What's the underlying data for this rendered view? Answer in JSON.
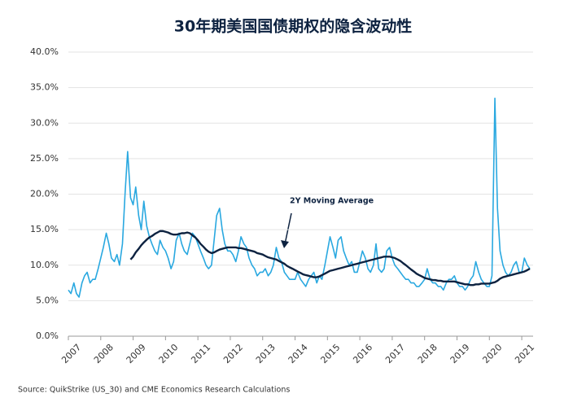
{
  "chart_data": {
    "type": "line",
    "title": "30年期美国国债期权的隐含波动性",
    "source": "Source: QuikStrike (US_30) and CME Economics Research Calculations",
    "annotation": "2Y Moving Average",
    "x": [
      2007.0,
      2007.08,
      2007.17,
      2007.25,
      2007.33,
      2007.42,
      2007.5,
      2007.58,
      2007.67,
      2007.75,
      2007.83,
      2007.92,
      2008.0,
      2008.08,
      2008.17,
      2008.25,
      2008.33,
      2008.42,
      2008.5,
      2008.58,
      2008.67,
      2008.75,
      2008.83,
      2008.92,
      2009.0,
      2009.08,
      2009.17,
      2009.25,
      2009.33,
      2009.42,
      2009.5,
      2009.58,
      2009.67,
      2009.75,
      2009.83,
      2009.92,
      2010.0,
      2010.08,
      2010.17,
      2010.25,
      2010.33,
      2010.42,
      2010.5,
      2010.58,
      2010.67,
      2010.75,
      2010.83,
      2010.92,
      2011.0,
      2011.08,
      2011.17,
      2011.25,
      2011.33,
      2011.42,
      2011.5,
      2011.58,
      2011.67,
      2011.75,
      2011.83,
      2011.92,
      2012.0,
      2012.08,
      2012.17,
      2012.25,
      2012.33,
      2012.42,
      2012.5,
      2012.58,
      2012.67,
      2012.75,
      2012.83,
      2012.92,
      2013.0,
      2013.08,
      2013.17,
      2013.25,
      2013.33,
      2013.42,
      2013.5,
      2013.58,
      2013.67,
      2013.75,
      2013.83,
      2013.92,
      2014.0,
      2014.08,
      2014.17,
      2014.25,
      2014.33,
      2014.42,
      2014.5,
      2014.58,
      2014.67,
      2014.75,
      2014.83,
      2014.92,
      2015.0,
      2015.08,
      2015.17,
      2015.25,
      2015.33,
      2015.42,
      2015.5,
      2015.58,
      2015.67,
      2015.75,
      2015.83,
      2015.92,
      2016.0,
      2016.08,
      2016.17,
      2016.25,
      2016.33,
      2016.42,
      2016.5,
      2016.58,
      2016.67,
      2016.75,
      2016.83,
      2016.92,
      2017.0,
      2017.08,
      2017.17,
      2017.25,
      2017.33,
      2017.42,
      2017.5,
      2017.58,
      2017.67,
      2017.75,
      2017.83,
      2017.92,
      2018.0,
      2018.08,
      2018.17,
      2018.25,
      2018.33,
      2018.42,
      2018.5,
      2018.58,
      2018.67,
      2018.75,
      2018.83,
      2018.92,
      2019.0,
      2019.08,
      2019.17,
      2019.25,
      2019.33,
      2019.42,
      2019.5,
      2019.58,
      2019.67,
      2019.75,
      2019.83,
      2019.92,
      2020.0,
      2020.08,
      2020.17,
      2020.25,
      2020.33,
      2020.42,
      2020.5,
      2020.58,
      2020.67,
      2020.75,
      2020.83,
      2020.92,
      2021.0,
      2021.08,
      2021.17,
      2021.25
    ],
    "series": [
      {
        "color": "#29a8e0",
        "width": 1.6,
        "values": [
          6.5,
          6.0,
          7.5,
          6.0,
          5.5,
          7.5,
          8.5,
          9.0,
          7.5,
          8.0,
          8.0,
          9.5,
          11.0,
          12.5,
          14.5,
          13.0,
          11.0,
          10.5,
          11.5,
          10.0,
          13.0,
          20.0,
          26.0,
          19.5,
          18.5,
          21.0,
          17.0,
          15.0,
          19.0,
          15.5,
          14.0,
          13.0,
          12.0,
          11.5,
          13.5,
          12.5,
          12.0,
          11.0,
          9.5,
          10.5,
          13.5,
          14.5,
          13.0,
          12.0,
          11.5,
          13.0,
          14.5,
          14.0,
          13.0,
          12.0,
          11.0,
          10.0,
          9.5,
          10.0,
          13.5,
          17.0,
          18.0,
          15.0,
          13.0,
          12.0,
          12.0,
          11.5,
          10.5,
          12.0,
          14.0,
          13.0,
          12.5,
          11.0,
          10.0,
          9.5,
          8.5,
          9.0,
          9.0,
          9.5,
          8.5,
          9.0,
          10.0,
          12.5,
          11.0,
          10.5,
          9.0,
          8.5,
          8.0,
          8.0,
          8.0,
          9.0,
          8.0,
          7.5,
          7.0,
          8.0,
          8.5,
          9.0,
          7.5,
          8.5,
          8.0,
          10.0,
          12.0,
          14.0,
          12.5,
          11.0,
          13.5,
          14.0,
          12.0,
          11.0,
          10.0,
          10.5,
          9.0,
          9.0,
          10.5,
          12.0,
          11.0,
          9.5,
          9.0,
          10.0,
          13.0,
          9.5,
          9.0,
          9.5,
          12.0,
          12.5,
          11.0,
          10.0,
          9.5,
          9.0,
          8.5,
          8.0,
          8.0,
          7.5,
          7.5,
          7.0,
          7.0,
          7.5,
          8.0,
          9.5,
          8.0,
          7.5,
          7.5,
          7.0,
          7.0,
          6.5,
          7.5,
          8.0,
          8.0,
          8.5,
          7.5,
          7.0,
          7.0,
          6.5,
          7.0,
          8.0,
          8.5,
          10.5,
          9.0,
          8.0,
          7.5,
          7.0,
          7.0,
          8.5,
          33.5,
          18.0,
          12.0,
          10.0,
          9.0,
          8.5,
          9.0,
          10.0,
          10.5,
          9.0,
          9.0,
          11.0,
          10.0,
          9.5
        ]
      },
      {
        "color": "#0d2240",
        "width": 2.4,
        "values": [
          null,
          null,
          null,
          null,
          null,
          null,
          null,
          null,
          null,
          null,
          null,
          null,
          null,
          null,
          null,
          null,
          null,
          null,
          null,
          null,
          null,
          null,
          null,
          10.8,
          11.2,
          11.8,
          12.3,
          12.8,
          13.2,
          13.6,
          13.9,
          14.1,
          14.4,
          14.6,
          14.8,
          14.8,
          14.7,
          14.6,
          14.4,
          14.3,
          14.3,
          14.4,
          14.5,
          14.5,
          14.6,
          14.5,
          14.2,
          13.9,
          13.5,
          13.0,
          12.6,
          12.2,
          11.9,
          11.7,
          11.8,
          12.0,
          12.2,
          12.3,
          12.4,
          12.5,
          12.5,
          12.5,
          12.5,
          12.4,
          12.4,
          12.3,
          12.2,
          12.1,
          12.0,
          11.9,
          11.7,
          11.6,
          11.5,
          11.3,
          11.1,
          11.0,
          10.9,
          10.8,
          10.6,
          10.4,
          10.2,
          9.9,
          9.7,
          9.5,
          9.3,
          9.1,
          8.9,
          8.7,
          8.6,
          8.5,
          8.4,
          8.3,
          8.3,
          8.4,
          8.6,
          8.8,
          9.0,
          9.2,
          9.3,
          9.4,
          9.5,
          9.6,
          9.7,
          9.8,
          9.9,
          10.0,
          10.1,
          10.2,
          10.3,
          10.4,
          10.5,
          10.6,
          10.7,
          10.8,
          10.9,
          11.0,
          11.1,
          11.2,
          11.2,
          11.2,
          11.1,
          11.0,
          10.8,
          10.6,
          10.3,
          10.0,
          9.7,
          9.4,
          9.1,
          8.8,
          8.6,
          8.4,
          8.2,
          8.1,
          8.0,
          7.9,
          7.9,
          7.8,
          7.8,
          7.7,
          7.7,
          7.7,
          7.7,
          7.7,
          7.6,
          7.5,
          7.4,
          7.3,
          7.3,
          7.2,
          7.2,
          7.3,
          7.3,
          7.4,
          7.4,
          7.4,
          7.4,
          7.5,
          7.6,
          7.8,
          8.1,
          8.3,
          8.4,
          8.5,
          8.6,
          8.7,
          8.8,
          8.9,
          9.0,
          9.1,
          9.3,
          9.5
        ]
      }
    ],
    "xlim": [
      2007,
      2021.35
    ],
    "xticks": [
      2007,
      2008,
      2009,
      2010,
      2011,
      2012,
      2013,
      2014,
      2015,
      2016,
      2017,
      2018,
      2019,
      2020,
      2021
    ],
    "ylim": [
      0,
      40
    ],
    "yticks": [
      {
        "value": 0,
        "label": "0.0%"
      },
      {
        "value": 5,
        "label": "5.0%"
      },
      {
        "value": 10,
        "label": "10.0%"
      },
      {
        "value": 15,
        "label": "15.0%"
      },
      {
        "value": 20,
        "label": "20.0%"
      },
      {
        "value": 25,
        "label": "25.0%"
      },
      {
        "value": 30,
        "label": "30.0%"
      },
      {
        "value": 35,
        "label": "35.0%"
      },
      {
        "value": 40,
        "label": "40.0%"
      }
    ],
    "grid": true
  }
}
